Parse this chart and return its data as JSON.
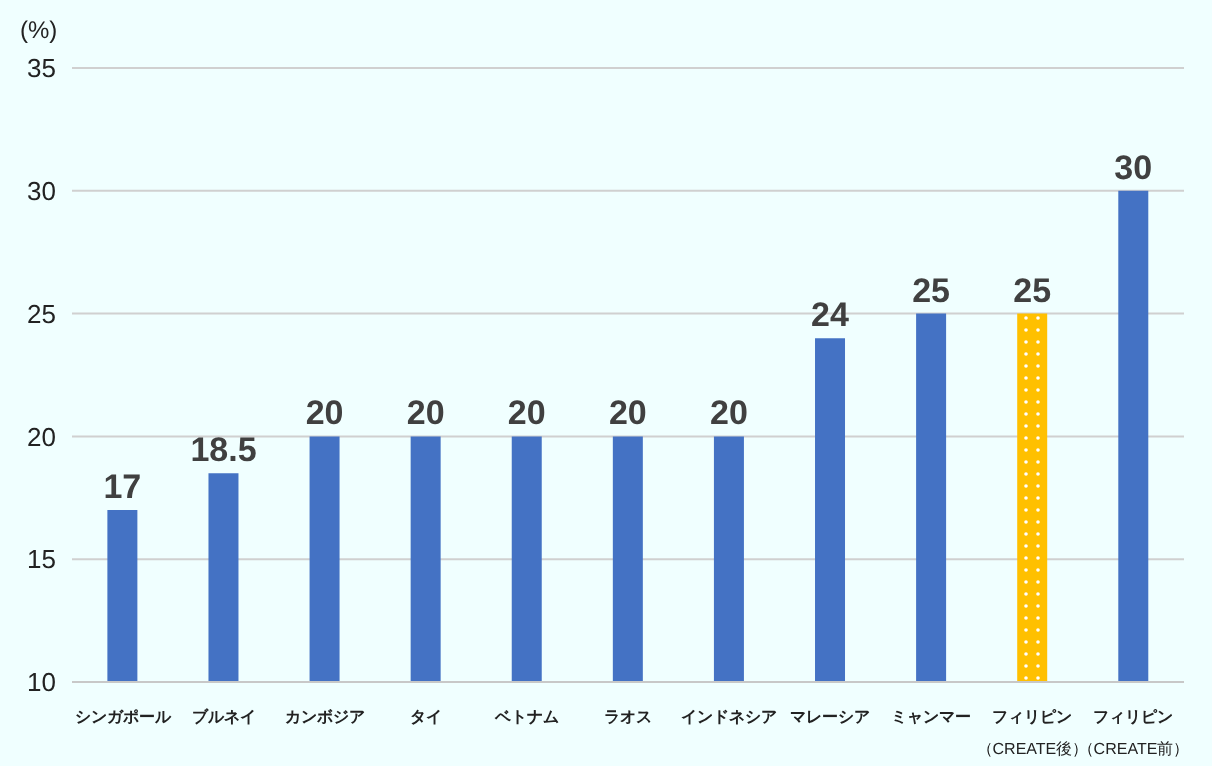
{
  "chart_data": {
    "type": "bar",
    "ylabel": "(%)",
    "categories": [
      "シンガポール",
      "ブルネイ",
      "カンボジア",
      "タイ",
      "ベトナム",
      "ラオス",
      "インドネシア",
      "マレーシア",
      "ミャンマー",
      "フィリピン（CREATE後）",
      "フィリピン（CREATE前）"
    ],
    "values": [
      17,
      18.5,
      20,
      20,
      20,
      20,
      20,
      24,
      25,
      25,
      30
    ],
    "colors": [
      "#4472c4",
      "#4472c4",
      "#4472c4",
      "#4472c4",
      "#4472c4",
      "#4472c4",
      "#4472c4",
      "#4472c4",
      "#4472c4",
      "#ffc000",
      "#4472c4"
    ],
    "ylim": [
      10,
      35
    ],
    "yticks": [
      10,
      15,
      20,
      25,
      30,
      35
    ],
    "grid": "y",
    "data_labels": true
  }
}
